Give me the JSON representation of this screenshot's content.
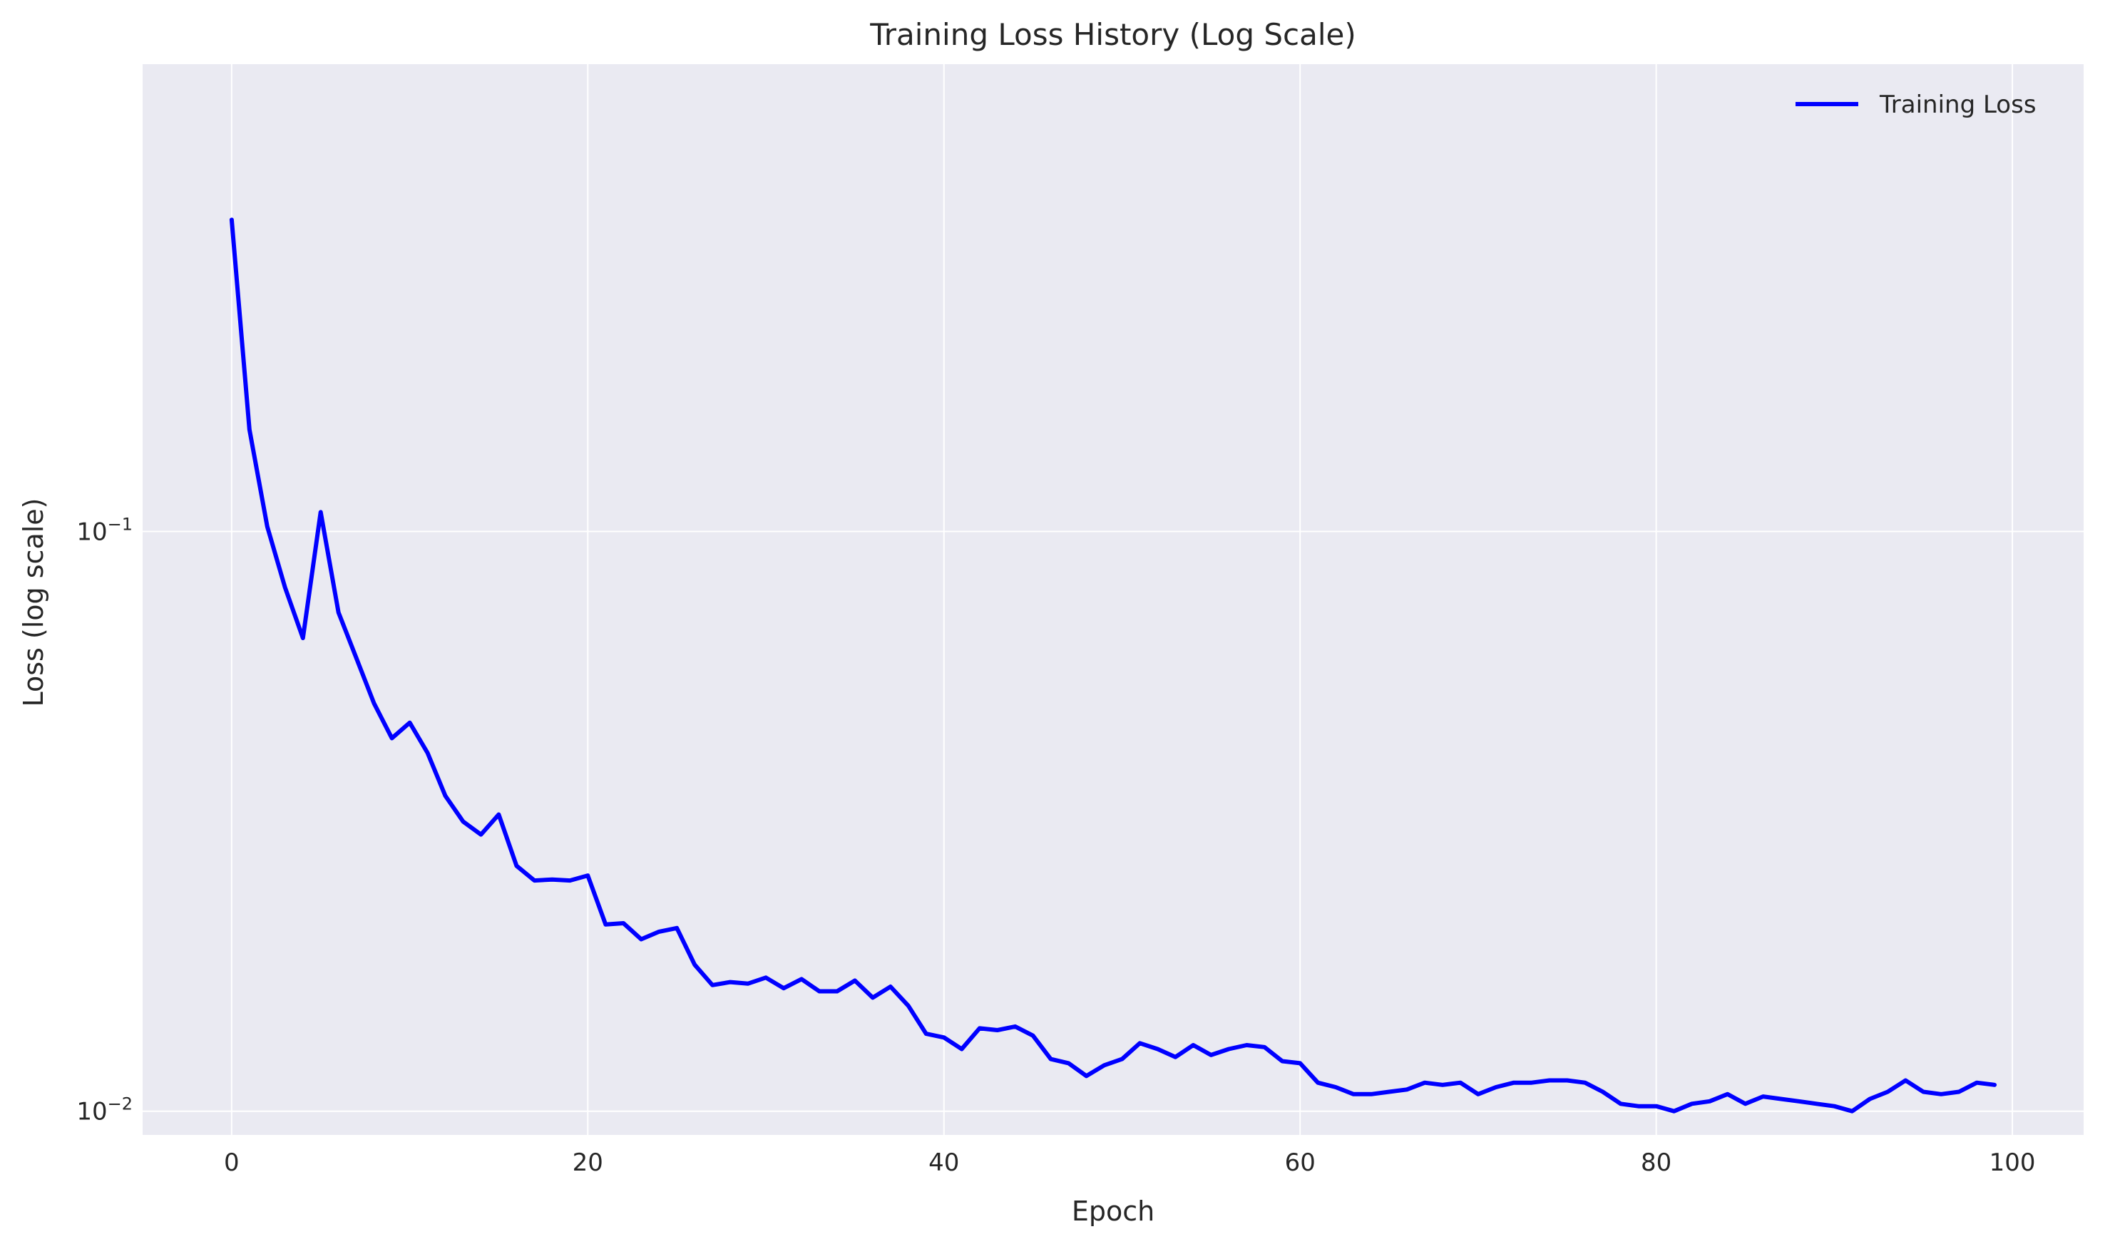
{
  "chart_data": {
    "type": "line",
    "title": "Training Loss History (Log Scale)",
    "xlabel": "Epoch",
    "ylabel": "Loss (log scale)",
    "xlim": [
      -5,
      104
    ],
    "ylim": [
      0.0091,
      0.64
    ],
    "yscale": "log",
    "grid": true,
    "legend_position": "top-right",
    "x_ticks": [
      0,
      20,
      40,
      60,
      80,
      100
    ],
    "y_ticks": [
      {
        "value": 0.1,
        "base": "10",
        "exp": "−1"
      },
      {
        "value": 0.01,
        "base": "10",
        "exp": "−2"
      }
    ],
    "series": [
      {
        "name": "Training Loss",
        "color": "#0000ff",
        "x": [
          0,
          1,
          2,
          3,
          4,
          5,
          6,
          7,
          8,
          9,
          10,
          11,
          12,
          13,
          14,
          15,
          16,
          17,
          18,
          19,
          20,
          21,
          22,
          23,
          24,
          25,
          26,
          27,
          28,
          29,
          30,
          31,
          32,
          33,
          34,
          35,
          36,
          37,
          38,
          39,
          40,
          41,
          42,
          43,
          44,
          45,
          46,
          47,
          48,
          49,
          50,
          51,
          52,
          53,
          54,
          55,
          56,
          57,
          58,
          59,
          60,
          61,
          62,
          63,
          64,
          65,
          66,
          67,
          68,
          69,
          70,
          71,
          72,
          73,
          74,
          75,
          76,
          77,
          78,
          79,
          80,
          81,
          82,
          83,
          84,
          85,
          86,
          87,
          88,
          89,
          90,
          91,
          92,
          93,
          94,
          95,
          96,
          97,
          98,
          99
        ],
        "values": [
          0.345,
          0.15,
          0.102,
          0.08,
          0.0655,
          0.108,
          0.0725,
          0.0605,
          0.0505,
          0.044,
          0.0468,
          0.0415,
          0.035,
          0.0316,
          0.03,
          0.0325,
          0.0265,
          0.025,
          0.0251,
          0.025,
          0.0255,
          0.021,
          0.0211,
          0.0198,
          0.0204,
          0.0207,
          0.0179,
          0.0165,
          0.0167,
          0.0166,
          0.017,
          0.0163,
          0.0169,
          0.0161,
          0.0161,
          0.0168,
          0.0157,
          0.0164,
          0.0152,
          0.0136,
          0.0134,
          0.0128,
          0.0139,
          0.0138,
          0.014,
          0.0135,
          0.0123,
          0.0121,
          0.0115,
          0.012,
          0.0123,
          0.0131,
          0.0128,
          0.0124,
          0.013,
          0.0125,
          0.0128,
          0.013,
          0.0129,
          0.0122,
          0.0121,
          0.0112,
          0.011,
          0.0107,
          0.0107,
          0.0108,
          0.0109,
          0.0112,
          0.0111,
          0.0112,
          0.0107,
          0.011,
          0.0112,
          0.0112,
          0.0113,
          0.0113,
          0.0112,
          0.0108,
          0.0103,
          0.0102,
          0.0102,
          0.01,
          0.0103,
          0.0104,
          0.0107,
          0.0103,
          0.0106,
          0.0105,
          0.0104,
          0.0103,
          0.0102,
          0.01,
          0.0105,
          0.0108,
          0.0113,
          0.0108,
          0.0107,
          0.0108,
          0.0112,
          0.0111
        ]
      }
    ]
  }
}
